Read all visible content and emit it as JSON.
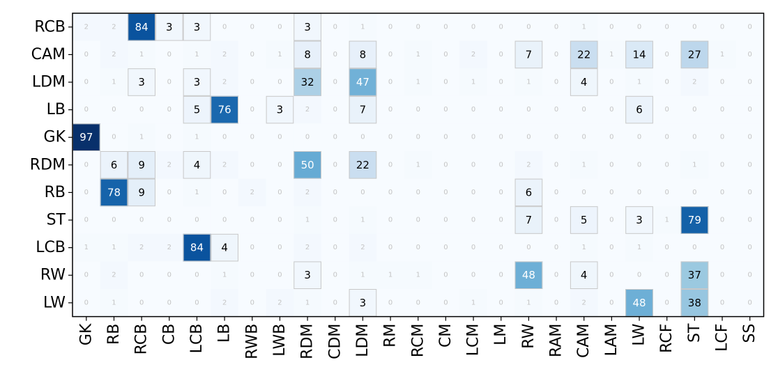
{
  "chart_data": {
    "type": "heatmap",
    "colormap": "Blues",
    "columns": [
      "GK",
      "RB",
      "RCB",
      "CB",
      "LCB",
      "LB",
      "RWB",
      "LWB",
      "RDM",
      "CDM",
      "LDM",
      "RM",
      "RCM",
      "CM",
      "LCM",
      "LM",
      "RW",
      "RAM",
      "CAM",
      "LAM",
      "LW",
      "RCF",
      "ST",
      "LCF",
      "SS"
    ],
    "rows": [
      "RCB",
      "CAM",
      "LDM",
      "LB",
      "GK",
      "RDM",
      "RB",
      "ST",
      "LCB",
      "RW",
      "LW"
    ],
    "values": [
      [
        2,
        2,
        84,
        3,
        3,
        0,
        0,
        0,
        3,
        0,
        1,
        0,
        0,
        0,
        0,
        0,
        0,
        0,
        1,
        0,
        0,
        0,
        0,
        0,
        0
      ],
      [
        0,
        2,
        1,
        0,
        1,
        2,
        0,
        1,
        8,
        0,
        8,
        0,
        1,
        0,
        2,
        0,
        7,
        0,
        22,
        1,
        14,
        0,
        27,
        1,
        0
      ],
      [
        0,
        1,
        3,
        0,
        3,
        2,
        0,
        0,
        32,
        0,
        47,
        0,
        1,
        0,
        1,
        0,
        1,
        0,
        4,
        0,
        1,
        0,
        2,
        0,
        0
      ],
      [
        0,
        0,
        0,
        0,
        5,
        76,
        0,
        3,
        2,
        0,
        7,
        0,
        0,
        0,
        0,
        0,
        0,
        0,
        0,
        0,
        6,
        0,
        0,
        0,
        0
      ],
      [
        97,
        0,
        1,
        0,
        1,
        0,
        0,
        0,
        0,
        0,
        0,
        0,
        0,
        0,
        0,
        0,
        0,
        0,
        0,
        0,
        0,
        0,
        0,
        0,
        0
      ],
      [
        0,
        6,
        9,
        2,
        4,
        2,
        0,
        0,
        50,
        0,
        22,
        0,
        1,
        0,
        0,
        0,
        2,
        0,
        1,
        0,
        0,
        0,
        1,
        0,
        0
      ],
      [
        0,
        78,
        9,
        0,
        1,
        0,
        2,
        0,
        2,
        0,
        0,
        0,
        0,
        0,
        0,
        0,
        6,
        0,
        0,
        0,
        0,
        0,
        0,
        0,
        0
      ],
      [
        0,
        0,
        0,
        0,
        0,
        0,
        0,
        0,
        1,
        0,
        1,
        0,
        0,
        0,
        0,
        0,
        7,
        0,
        5,
        0,
        3,
        1,
        79,
        0,
        0
      ],
      [
        1,
        1,
        2,
        2,
        84,
        4,
        0,
        0,
        2,
        0,
        2,
        0,
        0,
        0,
        0,
        0,
        0,
        0,
        1,
        0,
        1,
        0,
        0,
        0,
        0
      ],
      [
        0,
        2,
        0,
        0,
        0,
        1,
        0,
        0,
        3,
        0,
        1,
        1,
        1,
        0,
        0,
        0,
        48,
        0,
        4,
        0,
        0,
        0,
        37,
        0,
        0
      ],
      [
        0,
        1,
        0,
        0,
        0,
        2,
        0,
        2,
        1,
        0,
        3,
        0,
        0,
        0,
        1,
        0,
        1,
        0,
        2,
        0,
        48,
        0,
        38,
        0,
        0
      ]
    ],
    "vmin": 0,
    "vmax": 97,
    "highlight_threshold": 3,
    "title": "",
    "xlabel": "",
    "ylabel": ""
  }
}
